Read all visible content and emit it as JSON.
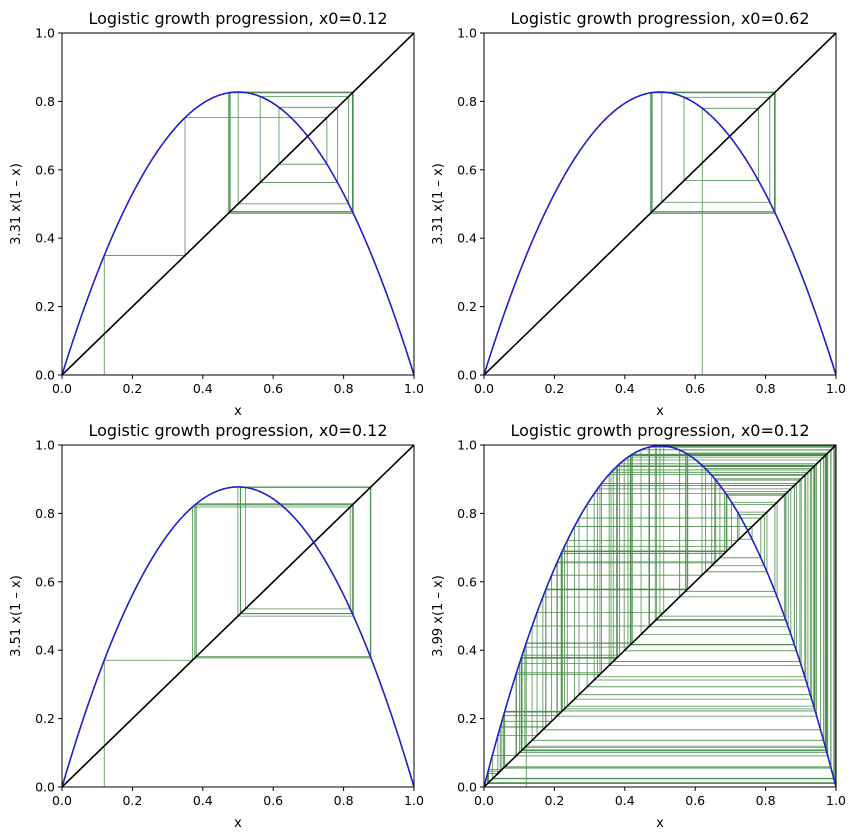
{
  "chart_data": [
    {
      "type": "line",
      "title": "Logistic growth progression, x0=0.12",
      "xlabel": "x",
      "ylabel": "3.31 x(1 – x)",
      "r": 3.31,
      "x0": 0.12,
      "xlim": [
        0,
        1
      ],
      "ylim": [
        0,
        1
      ],
      "xticks": [
        "0.0",
        "0.2",
        "0.4",
        "0.6",
        "0.8",
        "1.0"
      ],
      "yticks": [
        "0.0",
        "0.2",
        "0.4",
        "0.6",
        "0.8",
        "1.0"
      ],
      "iterations": 60,
      "colors": {
        "curve": "#1f1fc8",
        "diagonal": "#000000",
        "cobweb": "#2e7d2e"
      }
    },
    {
      "type": "line",
      "title": "Logistic growth progression, x0=0.62",
      "xlabel": "x",
      "ylabel": "3.31 x(1 – x)",
      "r": 3.31,
      "x0": 0.62,
      "xlim": [
        0,
        1
      ],
      "ylim": [
        0,
        1
      ],
      "xticks": [
        "0.0",
        "0.2",
        "0.4",
        "0.6",
        "0.8",
        "1.0"
      ],
      "yticks": [
        "0.0",
        "0.2",
        "0.4",
        "0.6",
        "0.8",
        "1.0"
      ],
      "iterations": 60,
      "colors": {
        "curve": "#1f1fc8",
        "diagonal": "#000000",
        "cobweb": "#2e7d2e"
      }
    },
    {
      "type": "line",
      "title": "Logistic growth progression, x0=0.12",
      "xlabel": "x",
      "ylabel": "3.51 x(1 – x)",
      "r": 3.51,
      "x0": 0.12,
      "xlim": [
        0,
        1
      ],
      "ylim": [
        0,
        1
      ],
      "xticks": [
        "0.0",
        "0.2",
        "0.4",
        "0.6",
        "0.8",
        "1.0"
      ],
      "yticks": [
        "0.0",
        "0.2",
        "0.4",
        "0.6",
        "0.8",
        "1.0"
      ],
      "iterations": 60,
      "colors": {
        "curve": "#1f1fc8",
        "diagonal": "#000000",
        "cobweb": "#2e7d2e"
      }
    },
    {
      "type": "line",
      "title": "Logistic growth progression, x0=0.12",
      "xlabel": "x",
      "ylabel": "3.99 x(1 – x)",
      "r": 3.99,
      "x0": 0.12,
      "xlim": [
        0,
        1
      ],
      "ylim": [
        0,
        1
      ],
      "xticks": [
        "0.0",
        "0.2",
        "0.4",
        "0.6",
        "0.8",
        "1.0"
      ],
      "yticks": [
        "0.0",
        "0.2",
        "0.4",
        "0.6",
        "0.8",
        "1.0"
      ],
      "iterations": 120,
      "colors": {
        "curve": "#1f1fc8",
        "diagonal": "#000000",
        "cobweb": "#2e7d2e"
      }
    }
  ]
}
